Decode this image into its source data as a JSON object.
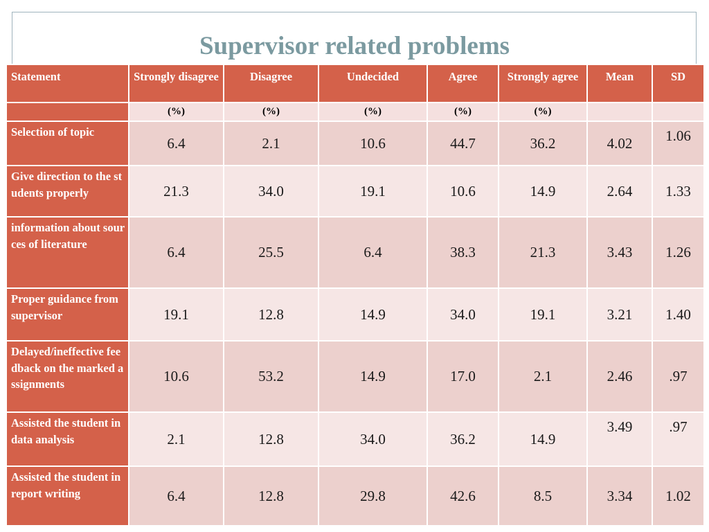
{
  "title": "Supervisor related problems",
  "colors": {
    "header": "#d4614a",
    "row_dark": "#ecd0cd",
    "row_light": "#f6e6e5",
    "title": "#7b9aa0"
  },
  "table": {
    "headers": [
      "Statement",
      "Strongly disagree",
      "Disagree",
      "Undecided",
      "Agree",
      "Strongly agree",
      "Mean",
      "SD"
    ],
    "units": [
      "",
      "(%)",
      "(%)",
      "(%)",
      "(%)",
      "(%)",
      "",
      ""
    ],
    "rows": [
      {
        "label": "Selection of topic",
        "values": [
          "6.4",
          "2.1",
          "10.6",
          "44.7",
          "36.2",
          "4.02",
          "1.06"
        ]
      },
      {
        "label": "Give direction to the students properly",
        "values": [
          "21.3",
          "34.0",
          "19.1",
          "10.6",
          "14.9",
          "2.64",
          "1.33"
        ]
      },
      {
        "label": "information about sources of literature",
        "values": [
          "6.4",
          "25.5",
          "6.4",
          "38.3",
          "21.3",
          "3.43",
          "1.26"
        ]
      },
      {
        "label": "Proper guidance from supervisor",
        "values": [
          "19.1",
          "12.8",
          "14.9",
          "34.0",
          "19.1",
          "3.21",
          "1.40"
        ]
      },
      {
        "label": "Delayed/ineffective feedback on the marked assignments",
        "values": [
          "10.6",
          "53.2",
          "14.9",
          "17.0",
          "2.1",
          "2.46",
          ".97"
        ]
      },
      {
        "label": "Assisted the student in data analysis",
        "values": [
          "2.1",
          "12.8",
          "34.0",
          "36.2",
          "14.9",
          "3.49",
          ".97"
        ]
      },
      {
        "label": "Assisted the student in report writing",
        "values": [
          "6.4",
          "12.8",
          "29.8",
          "42.6",
          "8.5",
          "3.34",
          "1.02"
        ]
      }
    ]
  }
}
